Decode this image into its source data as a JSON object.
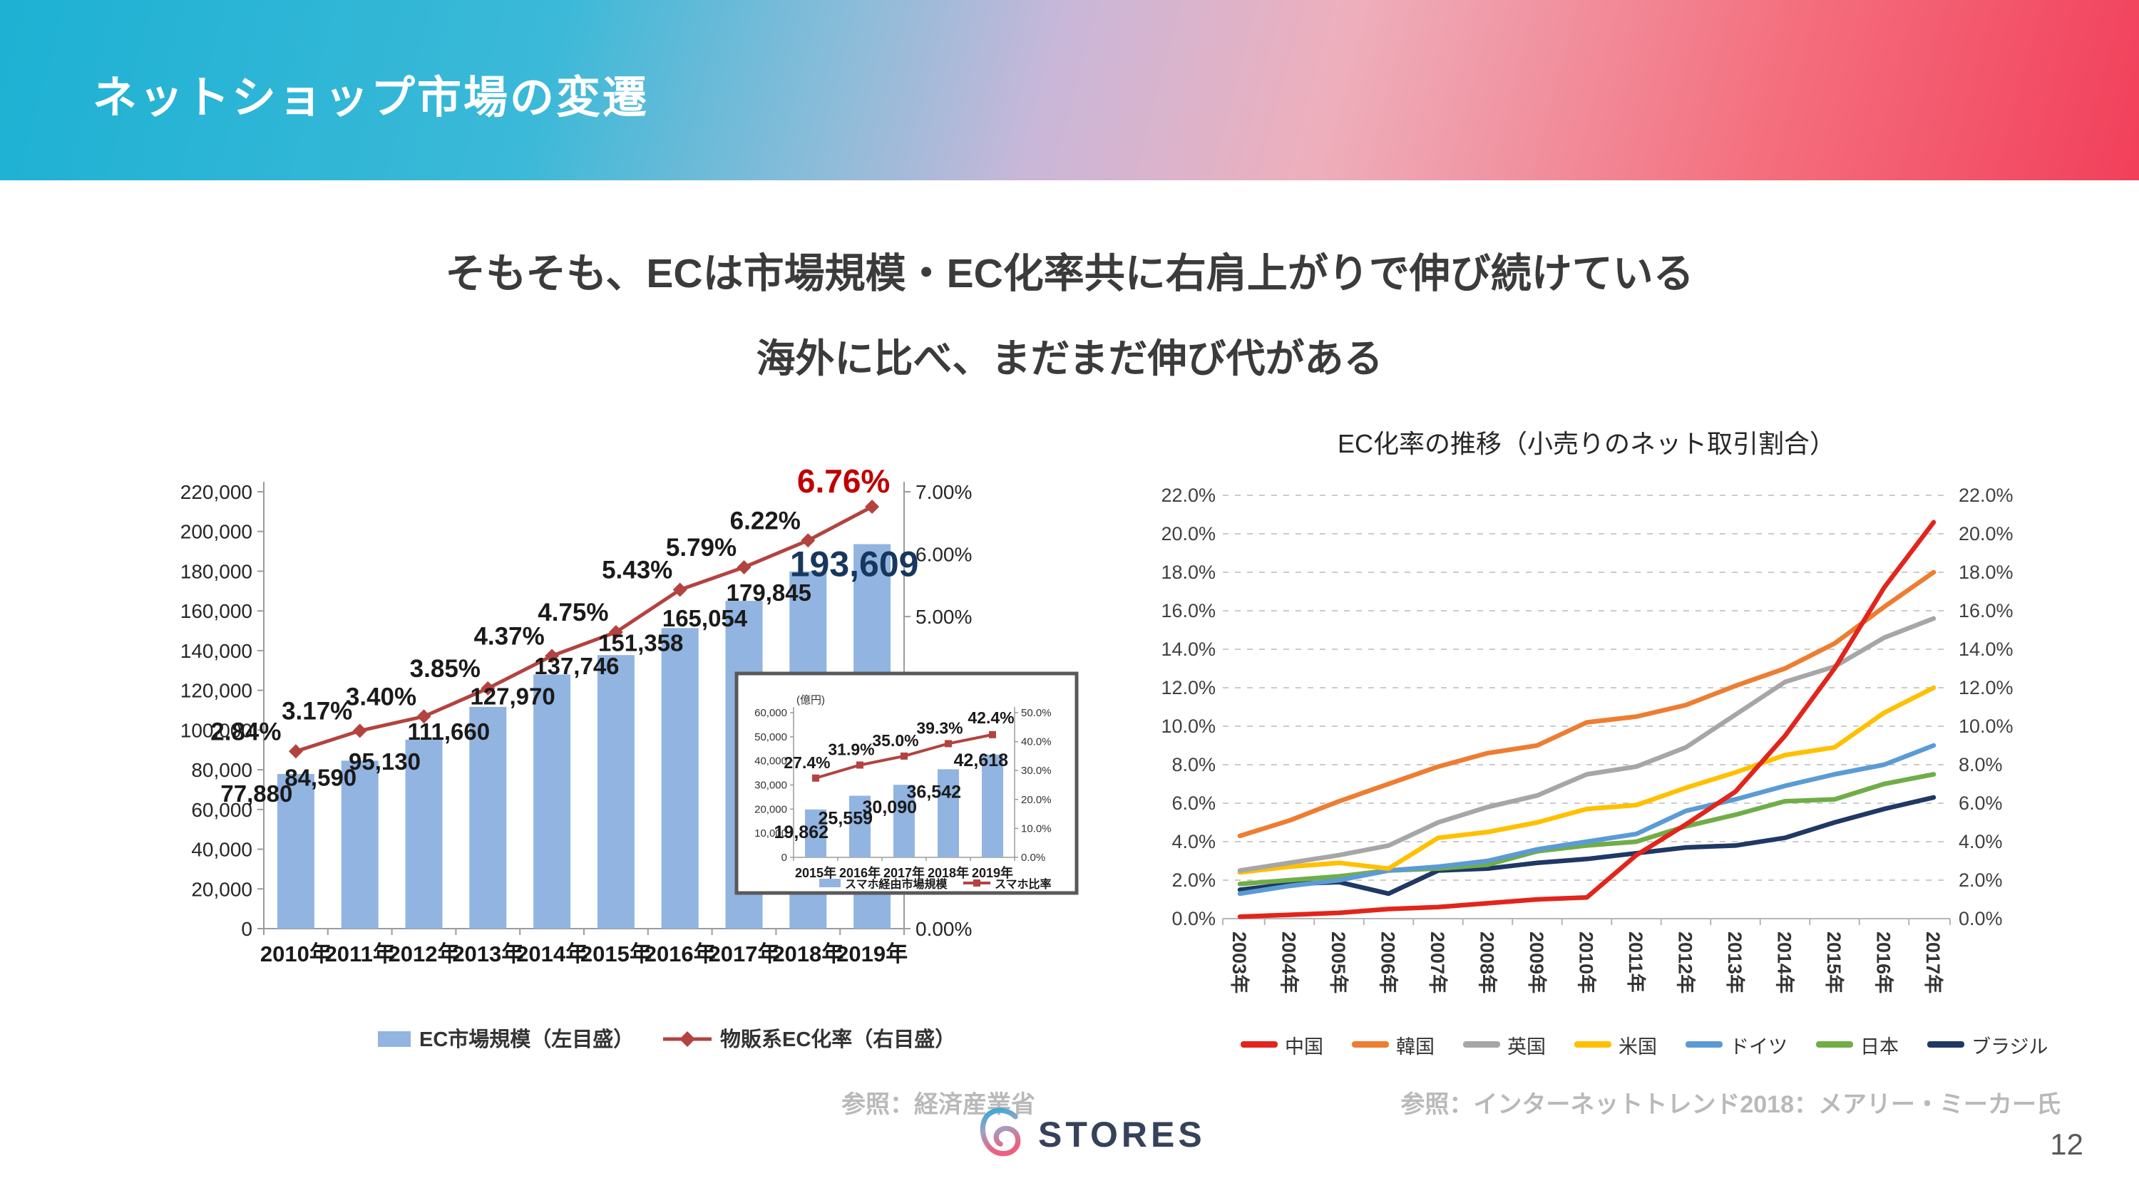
{
  "header": {
    "title": "ネットショップ市場の変遷"
  },
  "subtitle": {
    "line1": "そもそも、ECは市場規模・EC化率共に右肩上がりで伸び続けている",
    "line2": "海外に比べ、まだまだ伸び代がある"
  },
  "sources": {
    "left": "参照：経済産業省",
    "right": "参照：インターネットトレンド2018：メアリー・ミーカー氏"
  },
  "footer": {
    "brand": "STORES",
    "page_number": "12"
  },
  "colors": {
    "bar_blue": "#92b4e0",
    "line_dark_red": "#b3433f",
    "axis_gray": "#9b9b9b",
    "grid_gray": "#cbcbcb",
    "label_black": "#1a1a1a",
    "highlight_navy": "#17375e",
    "highlight_red": "#c00000",
    "source_gray": "#b9b9b9",
    "brand_navy": "#36415a",
    "logo_gradient_top": "#2ea9d8",
    "logo_gradient_bottom": "#ee5f7e",
    "header_gradient_left": "#1db1d3",
    "header_gradient_right": "#f23f5a"
  },
  "chart_data": [
    {
      "id": "ec-market-size",
      "type": "bar",
      "title": "",
      "categories": [
        "2010年",
        "2011年",
        "2012年",
        "2013年",
        "2014年",
        "2015年",
        "2016年",
        "2017年",
        "2018年",
        "2019年"
      ],
      "bars": {
        "name": "EC市場規模（左目盛）",
        "color": "#92b4e0",
        "values": [
          77880,
          84590,
          95130,
          111660,
          127970,
          137746,
          151358,
          165054,
          179845,
          193609
        ],
        "labels": [
          "77,880",
          "84,590",
          "95,130",
          "111,660",
          "127,970",
          "137,746",
          "151,358",
          "165,054",
          "179,845",
          "193,609"
        ]
      },
      "line": {
        "name": "物販系EC化率（右目盛）",
        "color": "#b3433f",
        "values": [
          2.84,
          3.17,
          3.4,
          3.85,
          4.37,
          4.75,
          5.43,
          5.79,
          6.22,
          6.76
        ],
        "labels": [
          "2.84%",
          "3.17%",
          "3.40%",
          "3.85%",
          "4.37%",
          "4.75%",
          "5.43%",
          "5.79%",
          "6.22%",
          "6.76%"
        ]
      },
      "left_axis": {
        "min": 0,
        "max": 220000,
        "step": 20000,
        "labels": [
          "0",
          "20,000",
          "40,000",
          "60,000",
          "80,000",
          "100,000",
          "120,000",
          "140,000",
          "160,000",
          "180,000",
          "200,000",
          "220,000"
        ]
      },
      "right_axis": {
        "min": 0,
        "max": 7,
        "step": 1,
        "labels": [
          "0.00%",
          "1.00%",
          "2.00%",
          "3.00%",
          "4.00%",
          "5.00%",
          "6.00%",
          "7.00%"
        ]
      },
      "highlight": {
        "bar_label": "193,609",
        "bar_label_color": "#17375e",
        "line_label": "6.76%",
        "line_label_color": "#c00000"
      },
      "grid": false,
      "legend_position": "bottom"
    },
    {
      "id": "smartphone-ec-inset",
      "type": "bar",
      "title": "",
      "unit_label": "(億円)",
      "categories": [
        "2015年",
        "2016年",
        "2017年",
        "2018年",
        "2019年"
      ],
      "bars": {
        "name": "スマホ経由市場規模",
        "color": "#92b4e0",
        "values": [
          19862,
          25559,
          30090,
          36542,
          42618
        ],
        "labels": [
          "19,862",
          "25,559",
          "30,090",
          "36,542",
          "42,618"
        ]
      },
      "line": {
        "name": "スマホ比率",
        "color": "#b3433f",
        "values": [
          27.4,
          31.9,
          35.0,
          39.3,
          42.4
        ],
        "labels": [
          "27.4%",
          "31.9%",
          "35.0%",
          "39.3%",
          "42.4%"
        ]
      },
      "left_axis": {
        "min": 0,
        "max": 60000,
        "step": 10000,
        "labels": [
          "0",
          "10,000",
          "20,000",
          "30,000",
          "40,000",
          "50,000",
          "60,000"
        ]
      },
      "right_axis": {
        "min": 0,
        "max": 50,
        "step": 10,
        "labels": [
          "0.0%",
          "10.0%",
          "20.0%",
          "30.0%",
          "40.0%",
          "50.0%"
        ]
      },
      "grid": false,
      "legend_position": "bottom"
    },
    {
      "id": "ec-rate-by-country",
      "type": "line",
      "title": "EC化率の推移（小売りのネット取引割合）",
      "categories": [
        "2003年",
        "2004年",
        "2005年",
        "2006年",
        "2007年",
        "2008年",
        "2009年",
        "2010年",
        "2011年",
        "2012年",
        "2013年",
        "2014年",
        "2015年",
        "2016年",
        "2017年"
      ],
      "y_axis": {
        "min": 0,
        "max": 22,
        "step": 2,
        "labels": [
          "0.0%",
          "2.0%",
          "4.0%",
          "6.0%",
          "8.0%",
          "10.0%",
          "12.0%",
          "14.0%",
          "16.0%",
          "18.0%",
          "20.0%",
          "22.0%"
        ]
      },
      "series": [
        {
          "name": "中国",
          "color": "#e1251c",
          "values": [
            0.1,
            0.2,
            0.3,
            0.5,
            0.6,
            0.8,
            1.0,
            1.1,
            3.3,
            4.9,
            6.6,
            9.5,
            13.0,
            17.2,
            20.6
          ]
        },
        {
          "name": "韓国",
          "color": "#ed7d31",
          "values": [
            4.3,
            5.1,
            6.1,
            7.0,
            7.9,
            8.6,
            9.0,
            10.2,
            10.5,
            11.1,
            12.1,
            13.0,
            14.3,
            16.2,
            18.0
          ]
        },
        {
          "name": "英国",
          "color": "#a6a6a6",
          "values": [
            2.5,
            2.9,
            3.3,
            3.8,
            5.0,
            5.8,
            6.4,
            7.5,
            7.9,
            8.9,
            10.6,
            12.3,
            13.1,
            14.6,
            15.6
          ]
        },
        {
          "name": "米国",
          "color": "#ffc000",
          "values": [
            2.4,
            2.7,
            2.9,
            2.6,
            4.2,
            4.5,
            5.0,
            5.7,
            5.9,
            6.8,
            7.6,
            8.5,
            8.9,
            10.7,
            12.0
          ]
        },
        {
          "name": "ドイツ",
          "color": "#5b9bd5",
          "values": [
            1.3,
            1.7,
            2.0,
            2.5,
            2.7,
            3.0,
            3.6,
            4.0,
            4.4,
            5.6,
            6.2,
            6.9,
            7.5,
            8.0,
            9.0
          ]
        },
        {
          "name": "日本",
          "color": "#70ad47",
          "values": [
            1.8,
            2.0,
            2.2,
            2.5,
            2.6,
            2.8,
            3.5,
            3.8,
            4.0,
            4.8,
            5.4,
            6.1,
            6.2,
            7.0,
            7.5
          ]
        },
        {
          "name": "ブラジル",
          "color": "#1f3864",
          "values": [
            1.5,
            1.8,
            1.9,
            1.3,
            2.5,
            2.6,
            2.9,
            3.1,
            3.4,
            3.7,
            3.8,
            4.2,
            5.0,
            5.7,
            6.3
          ]
        }
      ],
      "grid": true,
      "grid_style": "dashed",
      "legend_position": "bottom"
    }
  ]
}
